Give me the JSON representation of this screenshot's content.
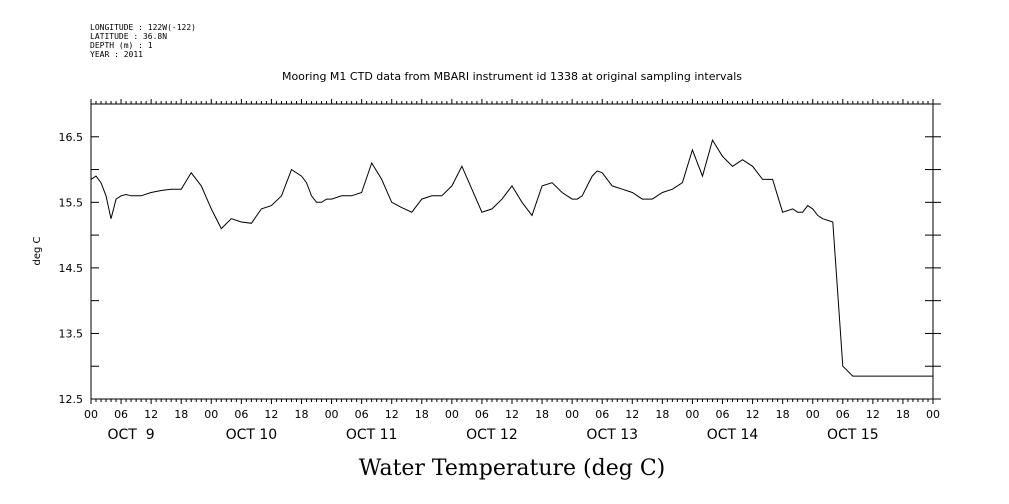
{
  "meta": {
    "longitude": "LONGITUDE : 122W(-122)",
    "latitude": "LATITUDE : 36.8N",
    "depth": "DEPTH (m) : 1",
    "year": "YEAR : 2011"
  },
  "chart_data": {
    "type": "line",
    "title": "Mooring M1 CTD data from MBARI instrument id 1338 at original sampling intervals",
    "xlabel": "Water Temperature (deg C)",
    "ylabel": "deg C",
    "ylim": [
      12.5,
      17.0
    ],
    "yticks": [
      "12.5",
      "13.5",
      "14.5",
      "15.5",
      "16.5"
    ],
    "xlim_hours": [
      0,
      168
    ],
    "xhour_labels": [
      "00",
      "06",
      "12",
      "18",
      "00",
      "06",
      "12",
      "18",
      "00",
      "06",
      "12",
      "18",
      "00",
      "06",
      "12",
      "18",
      "00",
      "06",
      "12",
      "18",
      "00",
      "06",
      "12",
      "18",
      "00",
      "06",
      "12",
      "18",
      "00"
    ],
    "day_labels": [
      "OCT  9",
      "OCT 10",
      "OCT 11",
      "OCT 12",
      "OCT 13",
      "OCT 14",
      "OCT 15"
    ],
    "grid": false,
    "series": [
      {
        "x": [
          0,
          1,
          2,
          3,
          4,
          5,
          6,
          7,
          8,
          10,
          12,
          14,
          16,
          18,
          20,
          22,
          24,
          26,
          28,
          30,
          32,
          34,
          36,
          38,
          40,
          42,
          43,
          44,
          45,
          46,
          47,
          48,
          50,
          52,
          54,
          56,
          58,
          60,
          62,
          64,
          66,
          68,
          70,
          72,
          74,
          76,
          78,
          80,
          82,
          84,
          86,
          88,
          90,
          92,
          94,
          96,
          97,
          98,
          99,
          100,
          101,
          102,
          104,
          106,
          108,
          110,
          112,
          114,
          116,
          118,
          120,
          122,
          124,
          126,
          128,
          130,
          132,
          134,
          136,
          138,
          140,
          141,
          142,
          143,
          144,
          145,
          146,
          148,
          150,
          152,
          154,
          156,
          157,
          158,
          160,
          162,
          163,
          164,
          165,
          166,
          167,
          168
        ],
        "y": [
          15.85,
          15.9,
          15.8,
          15.6,
          15.25,
          15.55,
          15.6,
          15.62,
          15.6,
          15.6,
          15.65,
          15.68,
          15.7,
          15.7,
          15.95,
          15.75,
          15.4,
          15.1,
          15.25,
          15.2,
          15.18,
          15.4,
          15.45,
          15.6,
          16.0,
          15.9,
          15.8,
          15.6,
          15.5,
          15.5,
          15.55,
          15.55,
          15.6,
          15.6,
          15.65,
          16.1,
          15.85,
          15.5,
          15.42,
          15.35,
          15.55,
          15.6,
          15.6,
          15.75,
          16.05,
          15.7,
          15.35,
          15.4,
          15.55,
          15.75,
          15.5,
          15.3,
          15.75,
          15.8,
          15.65,
          15.55,
          15.55,
          15.6,
          15.75,
          15.9,
          15.98,
          15.95,
          15.75,
          15.7,
          15.65,
          15.55,
          15.55,
          15.65,
          15.7,
          15.8,
          16.3,
          15.9,
          16.45,
          16.2,
          16.05,
          16.15,
          16.05,
          15.85,
          15.85,
          15.35,
          15.4,
          15.35,
          15.35,
          15.45,
          15.4,
          15.3,
          15.25,
          15.2,
          13.0,
          12.85,
          12.85,
          12.85,
          12.85,
          12.85,
          12.85,
          12.85,
          12.85,
          12.85,
          12.85,
          12.85,
          12.85,
          12.85
        ],
        "hour_scale": true
      }
    ]
  }
}
